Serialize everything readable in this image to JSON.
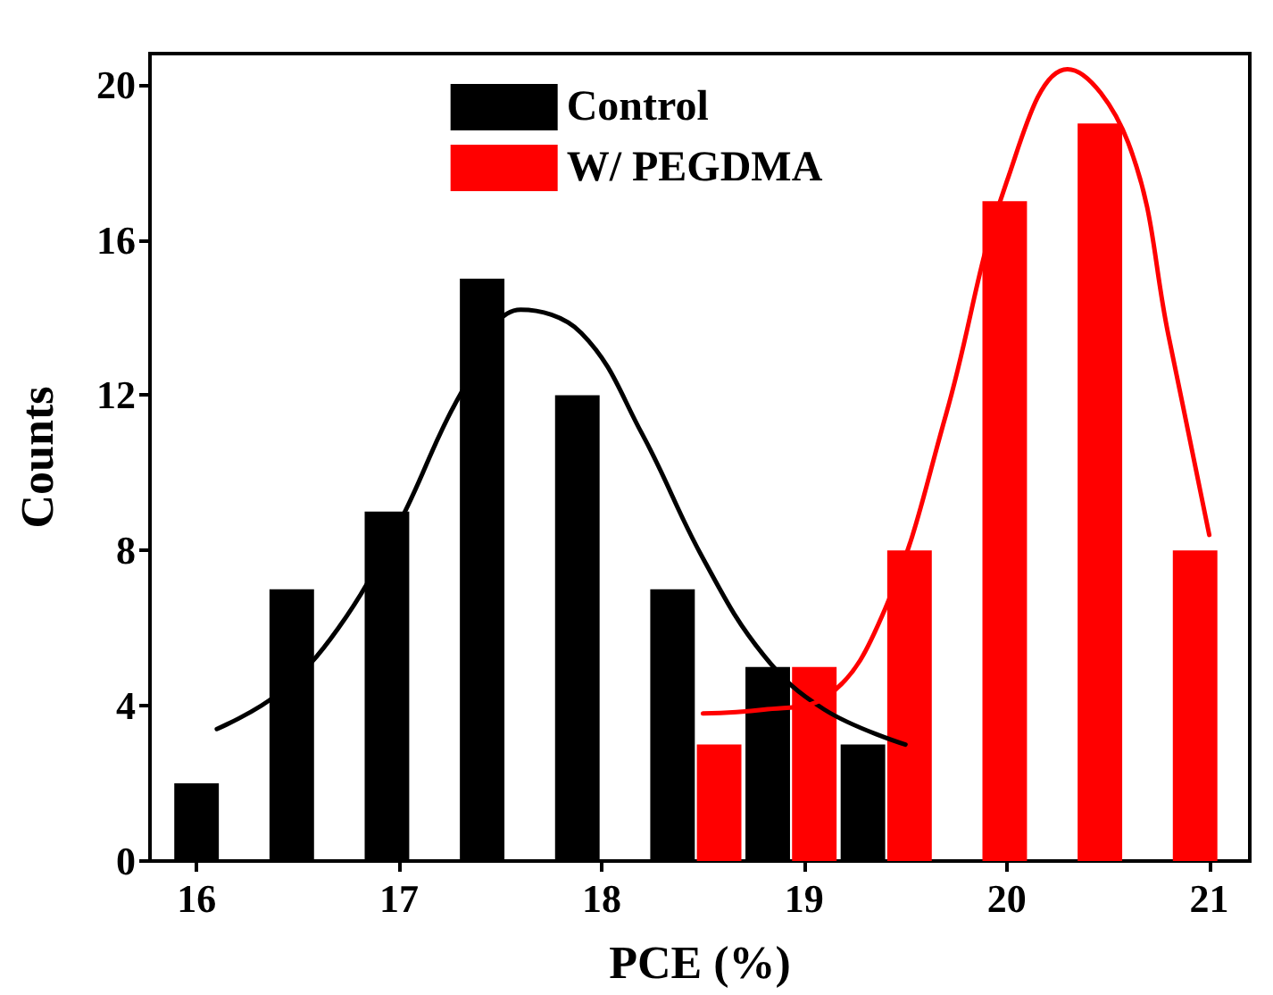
{
  "chart_data": {
    "type": "bar",
    "xlabel": "PCE (%)",
    "ylabel": "Counts",
    "xlim": [
      15.77,
      21.2
    ],
    "ylim": [
      0,
      20.8
    ],
    "xticks": [
      16,
      17,
      18,
      19,
      20,
      21
    ],
    "yticks": [
      0,
      4,
      8,
      12,
      16,
      20
    ],
    "grid": false,
    "legend": "top",
    "marker": "none",
    "line_style": "solid",
    "series": [
      {
        "name": "Control",
        "color": "#000000",
        "x": [
          16.0,
          16.47,
          16.94,
          17.41,
          17.88,
          18.35,
          18.82,
          19.29
        ],
        "values": [
          2,
          7,
          9,
          15,
          12,
          7,
          5,
          3
        ]
      },
      {
        "name": "W/ PEGDMA",
        "color": "#ff0000",
        "x": [
          18.58,
          19.05,
          19.52,
          19.99,
          20.46,
          20.93
        ],
        "values": [
          3,
          5,
          8,
          17,
          19,
          8
        ]
      },
      {
        "type": "line",
        "color": "#000000",
        "x": [
          16.1,
          16.4,
          16.7,
          17.0,
          17.3,
          17.6,
          17.9,
          18.2,
          18.5,
          18.8,
          19.1,
          19.5
        ],
        "values": [
          3.4,
          4.3,
          6.0,
          8.7,
          12.0,
          14.2,
          13.6,
          11.0,
          7.8,
          5.3,
          3.9,
          3.0
        ]
      },
      {
        "type": "line",
        "color": "#ff0000",
        "x": [
          18.5,
          18.8,
          19.1,
          19.4,
          19.7,
          20.0,
          20.3,
          20.6,
          20.8,
          21.0
        ],
        "values": [
          3.8,
          3.9,
          4.2,
          6.5,
          11.5,
          17.5,
          20.4,
          18.5,
          13.5,
          8.4
        ]
      }
    ]
  }
}
